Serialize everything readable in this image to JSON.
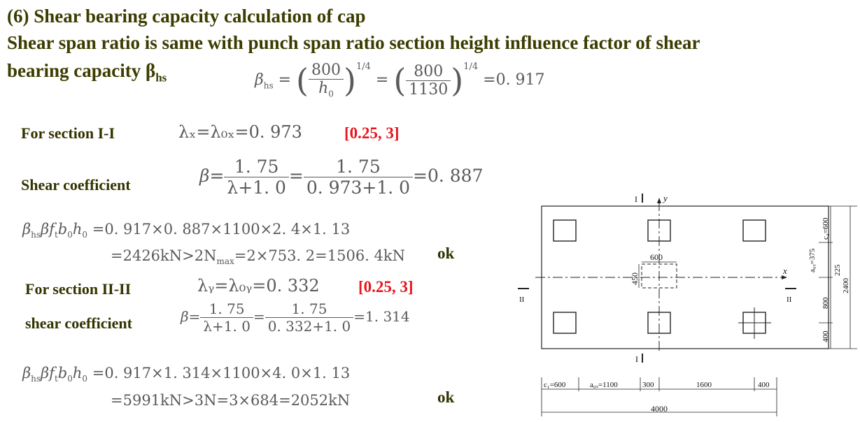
{
  "heading": {
    "line1": "(6) Shear bearing capacity calculation of cap",
    "line2": "Shear span ratio is same with punch span ratio section height influence factor of shear",
    "line3_text": "bearing capacity β",
    "line3_sub": "hs"
  },
  "beta_hs_formula": {
    "lhs": "β",
    "lhs_sub": "hs",
    "eq": "=",
    "num1": "800",
    "den1": "h",
    "den1_sub": "0",
    "exp": "1/4",
    "num2": "800",
    "den2": "1130",
    "result": "=0. 917"
  },
  "section_1": {
    "label": "For section I-I",
    "lambda_eq": "λₓ=λ₀ₓ=0. 973",
    "range": "[0.25, 3]",
    "coef_label": "Shear coefficient",
    "beta": "β=",
    "num": "1. 75",
    "den1": "λ+1. 0",
    "den2": "0. 973+1. 0",
    "result": "=0. 887",
    "cap_lhs": "β",
    "cap_lhs_sub": "hs",
    "cap_lhs_rest": "βf",
    "cap_t": "t",
    "cap_b": "b",
    "cap_h": "h",
    "cap_0": "0",
    "cap_line1": "=0. 917×0. 887×1100×2. 4×1. 13",
    "cap_line2": "=2426kN>2N",
    "cap_max": "max",
    "cap_line2_rest": "=2×753. 2=1506. 4kN",
    "ok": "ok"
  },
  "section_2": {
    "label": "For section II-II",
    "lambda_eq": "λᵧ=λ₀ᵧ=0. 332",
    "range": "[0.25, 3]",
    "coef_label": "shear coefficient",
    "beta": "β=",
    "num": "1. 75",
    "den1": "λ+1. 0",
    "den2": "0. 332+1. 0",
    "result": "=1. 314",
    "cap_line1": "=0. 917×1. 314×1100×4. 0×1. 13",
    "cap_line2": "=5991kN>3N=3×684=2052kN",
    "ok": "ok"
  },
  "diagram": {
    "sec1_top": "I",
    "sec1_bottom": "I",
    "sec2_left": "II",
    "sec2_right": "II",
    "axis_x": "x",
    "axis_y": "y",
    "dim_600_col": "600",
    "dim_450_col": "450",
    "right_dims": [
      "c₂=600",
      "a₀ᵧ=375",
      "225",
      "800",
      "400",
      "2400"
    ],
    "bottom_dims": [
      "c₁=600",
      "a₀ₓ=1100",
      "300",
      "1600",
      "400"
    ],
    "total_width": "4000"
  }
}
